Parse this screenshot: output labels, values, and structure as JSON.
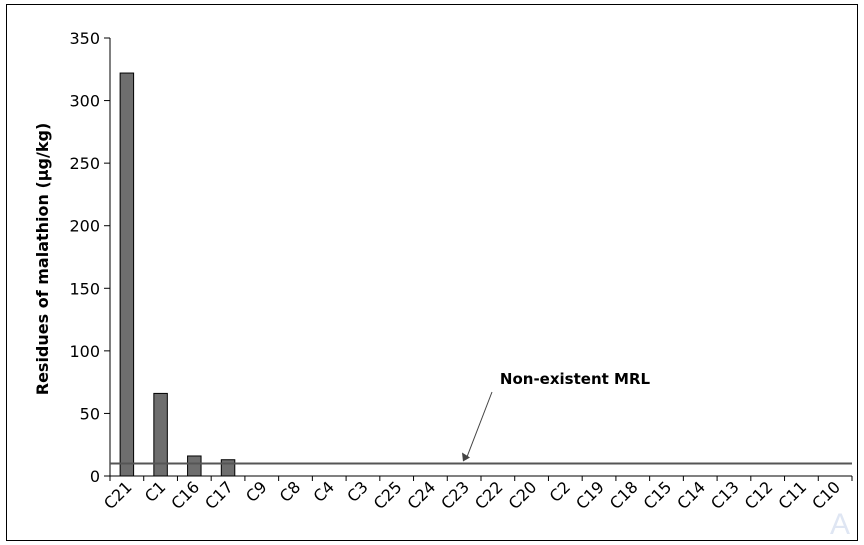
{
  "chart_data": {
    "type": "bar",
    "ylabel": "Residues of malathion (µg/kg)",
    "xlabel": "",
    "ylim": [
      0,
      350
    ],
    "yticks": [
      0,
      50,
      100,
      150,
      200,
      250,
      300,
      350
    ],
    "categories": [
      "C21",
      "C1",
      "C16",
      "C17",
      "C9",
      "C8",
      "C4",
      "C3",
      "C25",
      "C24",
      "C23",
      "C22",
      "C20",
      "C2",
      "C19",
      "C18",
      "C15",
      "C14",
      "C13",
      "C12",
      "C11",
      "C10"
    ],
    "values": [
      322,
      66,
      16,
      13,
      0,
      0,
      0,
      0,
      0,
      0,
      0,
      0,
      0,
      0,
      0,
      0,
      0,
      0,
      0,
      0,
      0,
      0
    ],
    "reference_line": {
      "value": 10
    },
    "annotation": {
      "text": "Non-existent MRL"
    },
    "bar_color": "#6e6e6e",
    "line_color": "#555555",
    "grid": false
  },
  "watermark": "A"
}
